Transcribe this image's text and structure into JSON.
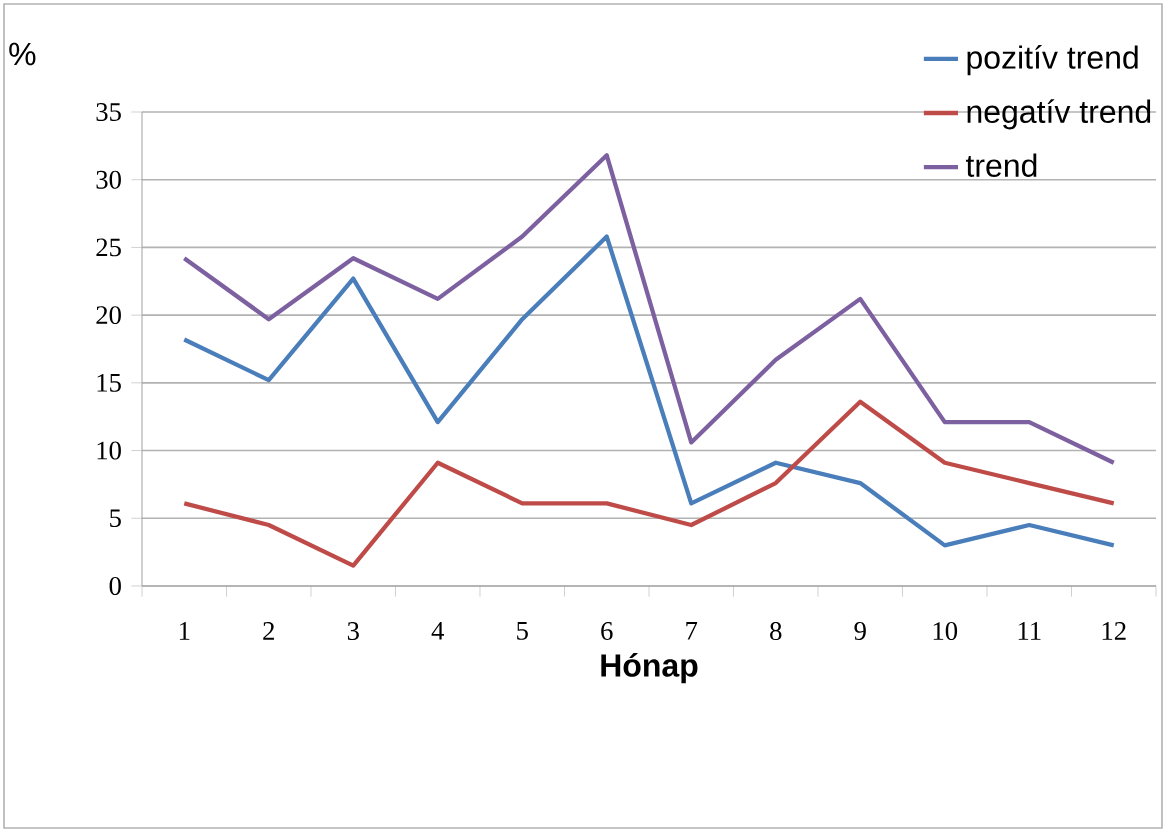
{
  "chart_data": {
    "type": "line",
    "xlabel": "**Hónap**",
    "ylabel": "%",
    "categories": [
      "1",
      "2",
      "3",
      "4",
      "5",
      "6",
      "7",
      "8",
      "9",
      "10",
      "11",
      "12"
    ],
    "series": [
      {
        "name": "pozitív trend",
        "color": "#4a7ebb",
        "values": [
          18.2,
          15.2,
          22.7,
          12.1,
          19.7,
          25.8,
          6.1,
          9.1,
          7.6,
          3.0,
          4.5,
          3.0
        ]
      },
      {
        "name": "negatív trend",
        "color": "#be4b48",
        "values": [
          6.1,
          4.5,
          1.5,
          9.1,
          6.1,
          6.1,
          4.5,
          7.6,
          13.6,
          9.1,
          7.6,
          6.1
        ]
      },
      {
        "name": "trend",
        "color": "#7d60a0",
        "values": [
          24.2,
          19.7,
          24.2,
          21.2,
          25.8,
          31.8,
          10.6,
          16.7,
          21.2,
          12.1,
          12.1,
          9.1
        ]
      }
    ],
    "ylim": [
      0,
      35
    ],
    "yticks": [
      0,
      5,
      10,
      15,
      20,
      25,
      30,
      35
    ],
    "grid": "y",
    "legend": "top right"
  }
}
